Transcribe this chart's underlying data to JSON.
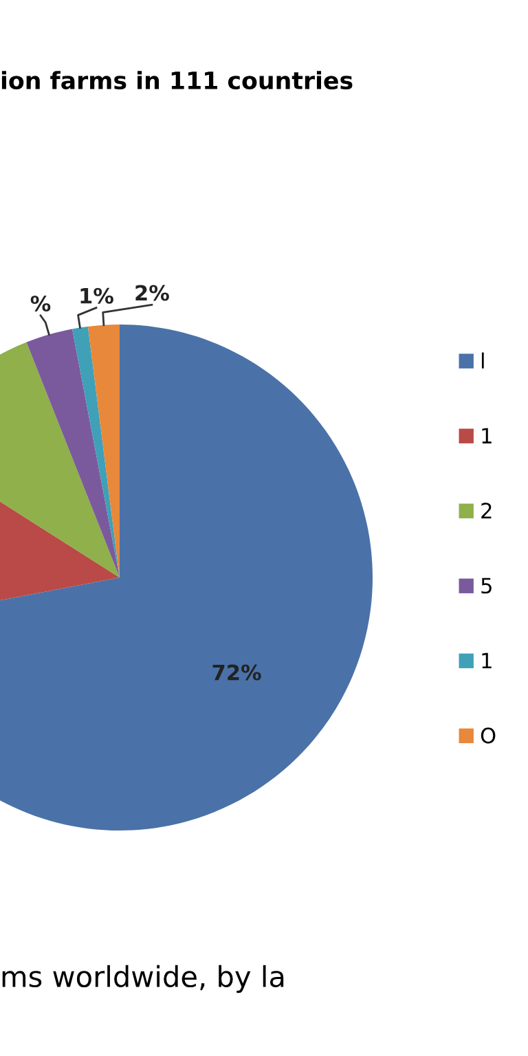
{
  "chart_data": {
    "type": "pie",
    "title": "ion farms in 111 countries",
    "categories": [
      "l",
      "1",
      "2",
      "5",
      "1",
      "O"
    ],
    "values": [
      72,
      12,
      10,
      3,
      1,
      2
    ],
    "colors": [
      "#4a72a8",
      "#b94a48",
      "#8fb04a",
      "#7a5a9c",
      "#3fa0b8",
      "#e8883a"
    ],
    "value_labels": [
      "72%",
      null,
      null,
      "%",
      "1%",
      "2%"
    ],
    "legend": "right",
    "annotations": [
      "ms worldwide, by la"
    ]
  }
}
